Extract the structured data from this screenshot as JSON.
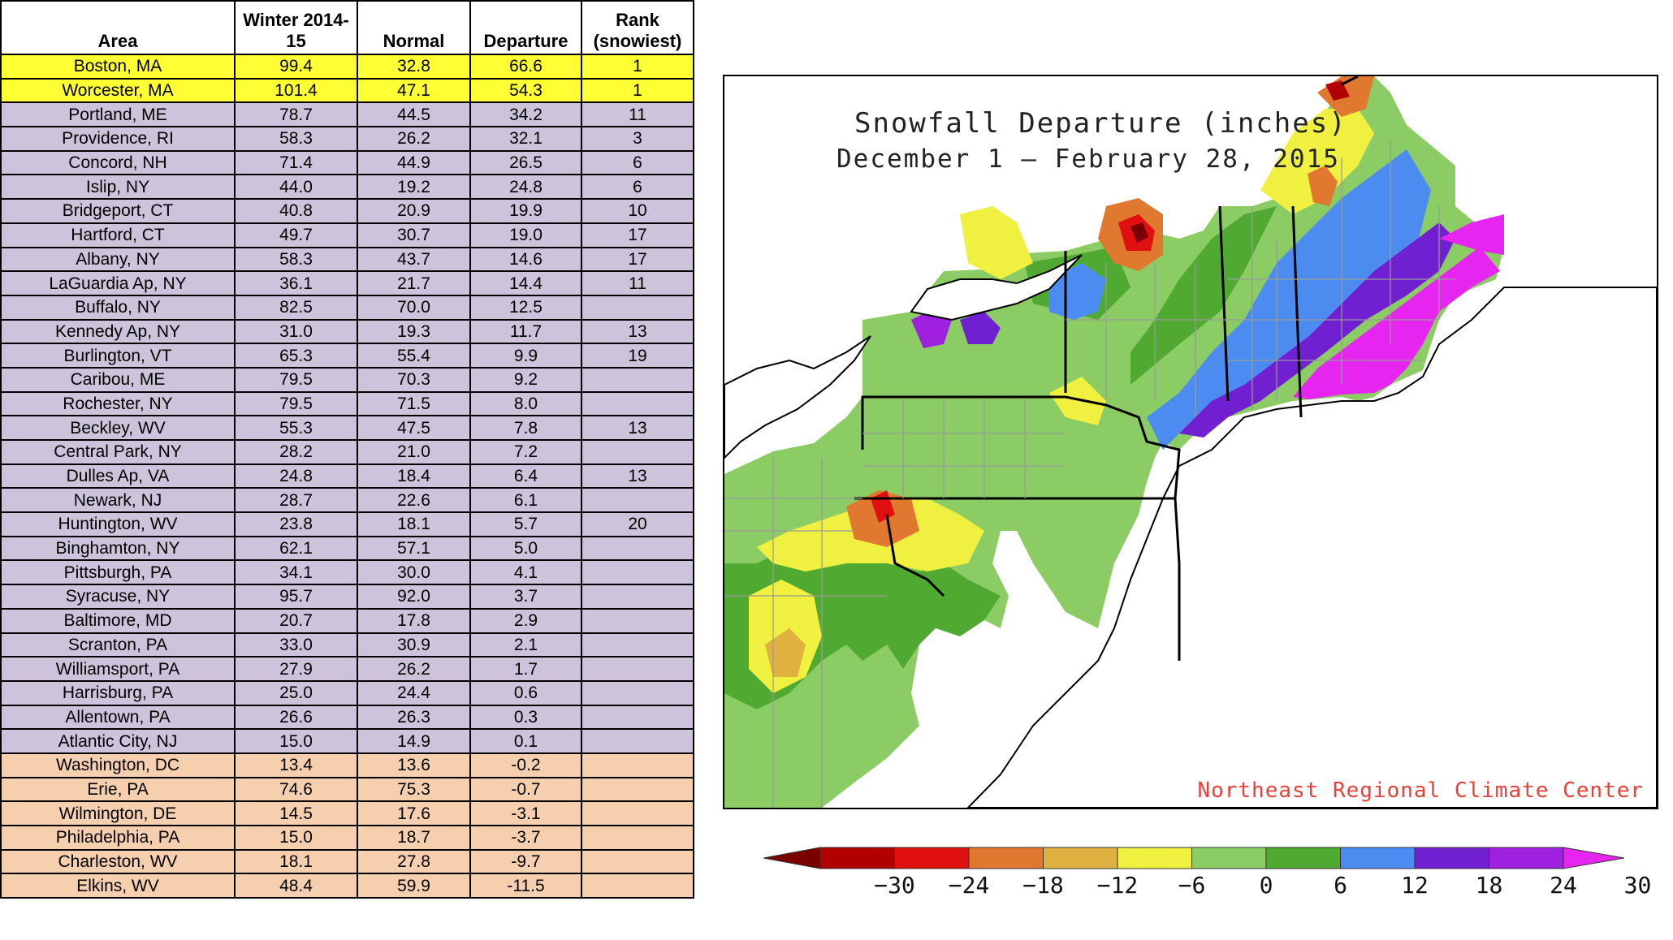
{
  "table": {
    "headers": {
      "area": "Area",
      "winter": "Winter 2014-15",
      "normal": "Normal",
      "departure": "Departure",
      "rank_line1": "Rank",
      "rank_line2": "(snowiest)"
    },
    "row_colors": {
      "record": "#ffff33",
      "above": "#cdc4dc",
      "below": "#f6cfae"
    },
    "rows": [
      {
        "area": "Boston, MA",
        "winter": "99.4",
        "normal": "32.8",
        "departure": "66.6",
        "rank": "1",
        "group": "record"
      },
      {
        "area": "Worcester, MA",
        "winter": "101.4",
        "normal": "47.1",
        "departure": "54.3",
        "rank": "1",
        "group": "record"
      },
      {
        "area": "Portland, ME",
        "winter": "78.7",
        "normal": "44.5",
        "departure": "34.2",
        "rank": "11",
        "group": "above"
      },
      {
        "area": "Providence, RI",
        "winter": "58.3",
        "normal": "26.2",
        "departure": "32.1",
        "rank": "3",
        "group": "above"
      },
      {
        "area": "Concord, NH",
        "winter": "71.4",
        "normal": "44.9",
        "departure": "26.5",
        "rank": "6",
        "group": "above"
      },
      {
        "area": "Islip, NY",
        "winter": "44.0",
        "normal": "19.2",
        "departure": "24.8",
        "rank": "6",
        "group": "above"
      },
      {
        "area": "Bridgeport, CT",
        "winter": "40.8",
        "normal": "20.9",
        "departure": "19.9",
        "rank": "10",
        "group": "above"
      },
      {
        "area": "Hartford, CT",
        "winter": "49.7",
        "normal": "30.7",
        "departure": "19.0",
        "rank": "17",
        "group": "above"
      },
      {
        "area": "Albany, NY",
        "winter": "58.3",
        "normal": "43.7",
        "departure": "14.6",
        "rank": "17",
        "group": "above"
      },
      {
        "area": "LaGuardia Ap, NY",
        "winter": "36.1",
        "normal": "21.7",
        "departure": "14.4",
        "rank": "11",
        "group": "above"
      },
      {
        "area": "Buffalo, NY",
        "winter": "82.5",
        "normal": "70.0",
        "departure": "12.5",
        "rank": "",
        "group": "above"
      },
      {
        "area": "Kennedy Ap, NY",
        "winter": "31.0",
        "normal": "19.3",
        "departure": "11.7",
        "rank": "13",
        "group": "above"
      },
      {
        "area": "Burlington, VT",
        "winter": "65.3",
        "normal": "55.4",
        "departure": "9.9",
        "rank": "19",
        "group": "above"
      },
      {
        "area": "Caribou, ME",
        "winter": "79.5",
        "normal": "70.3",
        "departure": "9.2",
        "rank": "",
        "group": "above"
      },
      {
        "area": "Rochester, NY",
        "winter": "79.5",
        "normal": "71.5",
        "departure": "8.0",
        "rank": "",
        "group": "above"
      },
      {
        "area": "Beckley, WV",
        "winter": "55.3",
        "normal": "47.5",
        "departure": "7.8",
        "rank": "13",
        "group": "above"
      },
      {
        "area": "Central Park, NY",
        "winter": "28.2",
        "normal": "21.0",
        "departure": "7.2",
        "rank": "",
        "group": "above"
      },
      {
        "area": "Dulles Ap, VA",
        "winter": "24.8",
        "normal": "18.4",
        "departure": "6.4",
        "rank": "13",
        "group": "above"
      },
      {
        "area": "Newark, NJ",
        "winter": "28.7",
        "normal": "22.6",
        "departure": "6.1",
        "rank": "",
        "group": "above"
      },
      {
        "area": "Huntington, WV",
        "winter": "23.8",
        "normal": "18.1",
        "departure": "5.7",
        "rank": "20",
        "group": "above"
      },
      {
        "area": "Binghamton, NY",
        "winter": "62.1",
        "normal": "57.1",
        "departure": "5.0",
        "rank": "",
        "group": "above"
      },
      {
        "area": "Pittsburgh, PA",
        "winter": "34.1",
        "normal": "30.0",
        "departure": "4.1",
        "rank": "",
        "group": "above"
      },
      {
        "area": "Syracuse, NY",
        "winter": "95.7",
        "normal": "92.0",
        "departure": "3.7",
        "rank": "",
        "group": "above"
      },
      {
        "area": "Baltimore, MD",
        "winter": "20.7",
        "normal": "17.8",
        "departure": "2.9",
        "rank": "",
        "group": "above"
      },
      {
        "area": "Scranton, PA",
        "winter": "33.0",
        "normal": "30.9",
        "departure": "2.1",
        "rank": "",
        "group": "above"
      },
      {
        "area": "Williamsport, PA",
        "winter": "27.9",
        "normal": "26.2",
        "departure": "1.7",
        "rank": "",
        "group": "above"
      },
      {
        "area": "Harrisburg, PA",
        "winter": "25.0",
        "normal": "24.4",
        "departure": "0.6",
        "rank": "",
        "group": "above"
      },
      {
        "area": "Allentown, PA",
        "winter": "26.6",
        "normal": "26.3",
        "departure": "0.3",
        "rank": "",
        "group": "above"
      },
      {
        "area": "Atlantic City, NJ",
        "winter": "15.0",
        "normal": "14.9",
        "departure": "0.1",
        "rank": "",
        "group": "above"
      },
      {
        "area": "Washington, DC",
        "winter": "13.4",
        "normal": "13.6",
        "departure": "-0.2",
        "rank": "",
        "group": "below"
      },
      {
        "area": "Erie, PA",
        "winter": "74.6",
        "normal": "75.3",
        "departure": "-0.7",
        "rank": "",
        "group": "below"
      },
      {
        "area": "Wilmington, DE",
        "winter": "14.5",
        "normal": "17.6",
        "departure": "-3.1",
        "rank": "",
        "group": "below"
      },
      {
        "area": "Philadelphia, PA",
        "winter": "15.0",
        "normal": "18.7",
        "departure": "-3.7",
        "rank": "",
        "group": "below"
      },
      {
        "area": "Charleston, WV",
        "winter": "18.1",
        "normal": "27.8",
        "departure": "-9.7",
        "rank": "",
        "group": "below"
      },
      {
        "area": "Elkins, WV",
        "winter": "48.4",
        "normal": "59.9",
        "departure": "-11.5",
        "rank": "",
        "group": "below"
      }
    ]
  },
  "map": {
    "title": "Snowfall Departure (inches)",
    "subtitle": "December 1 — February 28, 2015",
    "credit": "Northeast Regional Climate Center",
    "palette": {
      "lt-30": "#7a0000",
      "-30_-24": "#b00000",
      "-24_-18": "#e01010",
      "-18_-12": "#e07830",
      "-12_-6": "#e0b040",
      "-6_0": "#f0f040",
      "0_6": "#8ccc64",
      "6_12": "#50aa32",
      "12_18": "#4c8cf0",
      "18_24": "#7020d0",
      "24_30": "#a020e0",
      "gt30": "#e626f0"
    }
  },
  "legend": {
    "ticks": [
      "−30",
      "−24",
      "−18",
      "−12",
      "−6",
      "0",
      "6",
      "12",
      "18",
      "24",
      "30"
    ],
    "colors": [
      "#7a0000",
      "#b00000",
      "#e01010",
      "#e07830",
      "#e0b040",
      "#f0f040",
      "#8ccc64",
      "#50aa32",
      "#4c8cf0",
      "#7020d0",
      "#a020e0",
      "#e626f0"
    ]
  }
}
